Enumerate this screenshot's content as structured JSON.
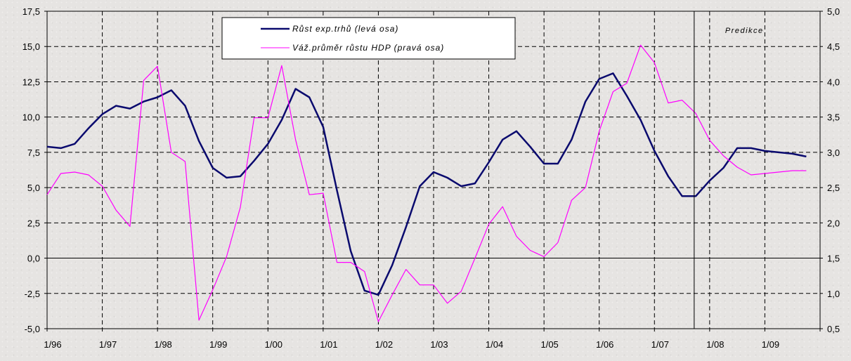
{
  "chart_data": {
    "type": "line",
    "x_tick_labels": [
      "1/96",
      "1/97",
      "1/98",
      "1/99",
      "1/00",
      "1/01",
      "1/02",
      "1/03",
      "1/04",
      "1/05",
      "1/06",
      "1/07",
      "1/08",
      "1/09"
    ],
    "x_range": [
      1996.0,
      2010.0
    ],
    "y_left": {
      "range": [
        -5.0,
        17.5
      ],
      "ticks": [
        -5.0,
        -2.5,
        0.0,
        2.5,
        5.0,
        7.5,
        10.0,
        12.5,
        15.0,
        17.5
      ],
      "tick_labels": [
        "-5,0",
        "-2,5",
        "0,0",
        "2,5",
        "5,0",
        "7,5",
        "10,0",
        "12,5",
        "15,0",
        "17,5"
      ]
    },
    "y_right": {
      "range": [
        0.5,
        5.0
      ],
      "ticks": [
        0.5,
        1.0,
        1.5,
        2.0,
        2.5,
        3.0,
        3.5,
        4.0,
        4.5,
        5.0
      ],
      "tick_labels": [
        "0,5",
        "1,0",
        "1,5",
        "2,0",
        "2,5",
        "3,0",
        "3,5",
        "4,0",
        "4,5",
        "5,0"
      ]
    },
    "grid": true,
    "legend_position": "top-center",
    "annotation": {
      "text": "Predikce",
      "vline_x": 2007.72
    },
    "series": [
      {
        "name": "Růst exp.trhů (levá osa)",
        "axis": "left",
        "color": "#0a0a6e",
        "x": [
          1996.0,
          1996.25,
          1996.5,
          1996.75,
          1997.0,
          1997.25,
          1997.5,
          1997.75,
          1998.0,
          1998.25,
          1998.5,
          1998.75,
          1999.0,
          1999.25,
          1999.5,
          1999.75,
          2000.0,
          2000.25,
          2000.5,
          2000.75,
          2001.0,
          2001.25,
          2001.5,
          2001.75,
          2002.0,
          2002.25,
          2002.5,
          2002.75,
          2003.0,
          2003.25,
          2003.5,
          2003.75,
          2004.0,
          2004.25,
          2004.5,
          2004.75,
          2005.0,
          2005.25,
          2005.5,
          2005.75,
          2006.0,
          2006.25,
          2006.5,
          2006.75,
          2007.0,
          2007.25,
          2007.5,
          2007.75,
          2008.0,
          2008.25,
          2008.5,
          2008.75,
          2009.0,
          2009.25,
          2009.5,
          2009.75
        ],
        "y": [
          7.9,
          7.8,
          8.1,
          9.2,
          10.2,
          10.8,
          10.6,
          11.1,
          11.4,
          11.9,
          10.8,
          8.3,
          6.4,
          5.7,
          5.8,
          6.9,
          8.1,
          9.8,
          12.0,
          11.4,
          9.3,
          4.8,
          0.5,
          -2.3,
          -2.6,
          -0.5,
          2.2,
          5.1,
          6.1,
          5.7,
          5.1,
          5.3,
          6.8,
          8.4,
          9.0,
          7.9,
          6.7,
          6.7,
          8.4,
          11.1,
          12.7,
          13.1,
          11.5,
          9.8,
          7.6,
          5.8,
          4.4,
          4.4,
          5.5,
          6.4,
          7.8,
          7.8,
          7.6,
          7.5,
          7.4,
          7.2
        ]
      },
      {
        "name": "Váž.průměr růstu HDP (pravá osa)",
        "axis": "right",
        "color": "#ff00ff",
        "x": [
          1996.0,
          1996.25,
          1996.5,
          1996.75,
          1997.0,
          1997.25,
          1997.5,
          1997.75,
          1998.0,
          1998.25,
          1998.5,
          1998.75,
          1999.0,
          1999.25,
          1999.5,
          1999.75,
          2000.0,
          2000.25,
          2000.5,
          2000.75,
          2001.0,
          2001.25,
          2001.5,
          2001.75,
          2002.0,
          2002.25,
          2002.5,
          2002.75,
          2003.0,
          2003.25,
          2003.5,
          2003.75,
          2004.0,
          2004.25,
          2004.5,
          2004.75,
          2005.0,
          2005.25,
          2005.5,
          2005.75,
          2006.0,
          2006.25,
          2006.5,
          2006.75,
          2007.0,
          2007.25,
          2007.5,
          2007.75,
          2008.0,
          2008.25,
          2008.5,
          2008.75,
          2009.0,
          2009.25,
          2009.5,
          2009.75
        ],
        "y": [
          2.4,
          2.7,
          2.72,
          2.68,
          2.52,
          2.18,
          1.95,
          4.02,
          4.22,
          3.0,
          2.87,
          0.62,
          1.05,
          1.52,
          2.22,
          3.49,
          3.49,
          4.23,
          3.18,
          2.4,
          2.42,
          1.44,
          1.44,
          1.31,
          0.6,
          0.98,
          1.34,
          1.12,
          1.12,
          0.86,
          1.03,
          1.5,
          1.98,
          2.23,
          1.81,
          1.61,
          1.52,
          1.72,
          2.32,
          2.5,
          3.3,
          3.86,
          3.98,
          4.52,
          4.27,
          3.7,
          3.74,
          3.55,
          3.17,
          2.95,
          2.79,
          2.68,
          2.7,
          2.72,
          2.74,
          2.74
        ]
      }
    ]
  }
}
